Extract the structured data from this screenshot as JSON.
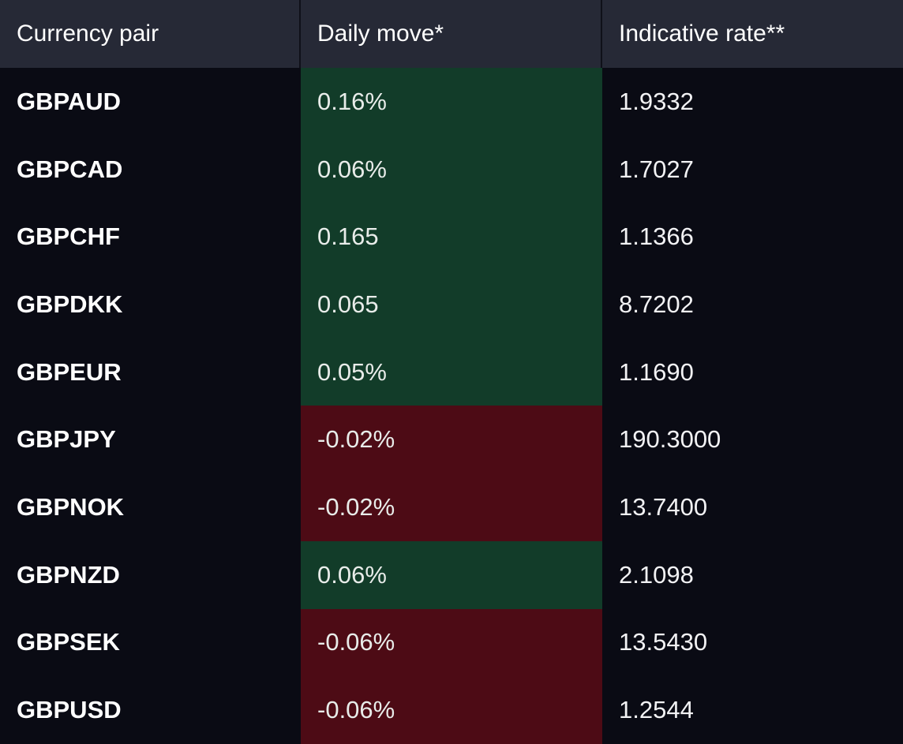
{
  "table": {
    "headers": {
      "pair": "Currency pair",
      "move": "Daily move*",
      "rate": "Indicative rate**"
    },
    "colors": {
      "header_bg": "#262936",
      "body_bg": "#0a0b14",
      "positive_bg": "#123c29",
      "negative_bg": "#4d0b15"
    },
    "rows": [
      {
        "pair": "GBPAUD",
        "move": "0.16%",
        "rate": "1.9332",
        "direction": "up"
      },
      {
        "pair": "GBPCAD",
        "move": "0.06%",
        "rate": "1.7027",
        "direction": "up"
      },
      {
        "pair": "GBPCHF",
        "move": "0.165",
        "rate": "1.1366",
        "direction": "up"
      },
      {
        "pair": "GBPDKK",
        "move": "0.065",
        "rate": "8.7202",
        "direction": "up"
      },
      {
        "pair": "GBPEUR",
        "move": "0.05%",
        "rate": "1.1690",
        "direction": "up"
      },
      {
        "pair": "GBPJPY",
        "move": "-0.02%",
        "rate": "190.3000",
        "direction": "down"
      },
      {
        "pair": "GBPNOK",
        "move": "-0.02%",
        "rate": "13.7400",
        "direction": "down"
      },
      {
        "pair": "GBPNZD",
        "move": "0.06%",
        "rate": "2.1098",
        "direction": "up"
      },
      {
        "pair": "GBPSEK",
        "move": "-0.06%",
        "rate": "13.5430",
        "direction": "down"
      },
      {
        "pair": "GBPUSD",
        "move": "-0.06%",
        "rate": "1.2544",
        "direction": "down"
      }
    ]
  }
}
